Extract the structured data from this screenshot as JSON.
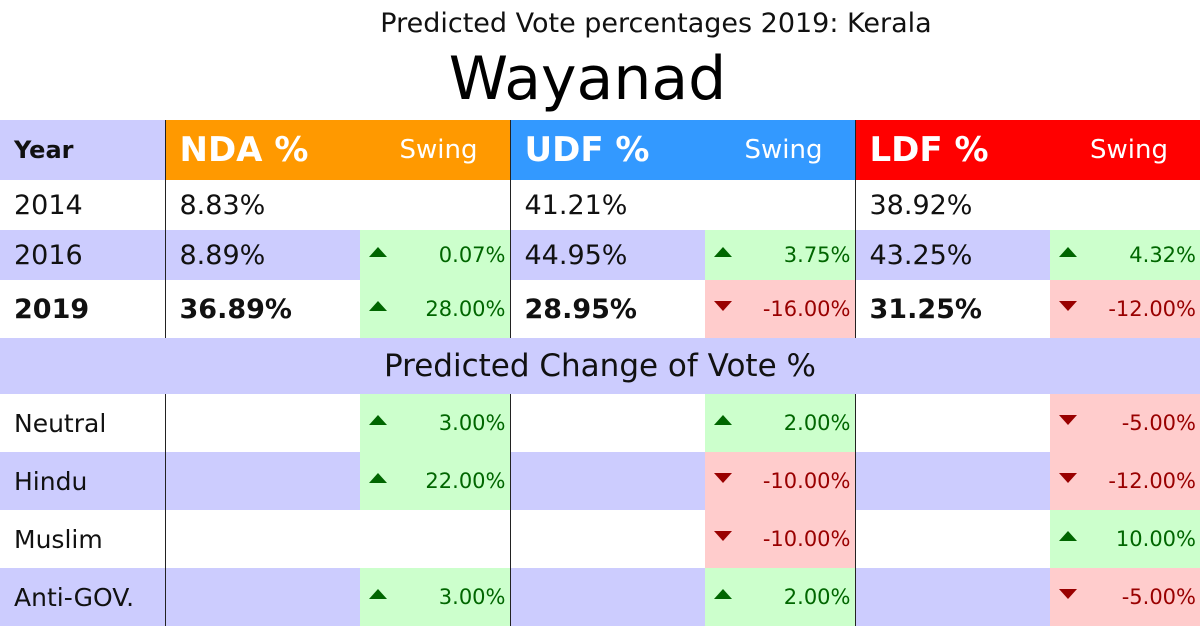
{
  "subtitle": "Predicted Vote percentages 2019: Kerala",
  "title": "Wayanad",
  "header": {
    "year": "Year",
    "nda": "NDA %",
    "udf": "UDF %",
    "ldf": "LDF %",
    "swing": "Swing"
  },
  "colors": {
    "nda": "#ff9900",
    "udf": "#3399ff",
    "ldf": "#ff0000",
    "band": "#ccccfe",
    "up": "#ccffcc",
    "down": "#ffcccc"
  },
  "years": [
    {
      "year": "2014",
      "nda": "8.83%",
      "nda_swing": "",
      "udf": "41.21%",
      "udf_swing": "",
      "ldf": "38.92%",
      "ldf_swing": ""
    },
    {
      "year": "2016",
      "nda": "8.89%",
      "nda_swing": "0.07%",
      "udf": "44.95%",
      "udf_swing": "3.75%",
      "ldf": "43.25%",
      "ldf_swing": "4.32%"
    },
    {
      "year": "2019",
      "nda": "36.89%",
      "nda_swing": "28.00%",
      "udf": "28.95%",
      "udf_swing": "-16.00%",
      "ldf": "31.25%",
      "ldf_swing": "-12.00%"
    }
  ],
  "section_title": "Predicted Change of Vote %",
  "changes": [
    {
      "label": "Neutral",
      "nda": "3.00%",
      "udf": "2.00%",
      "ldf": "-5.00%"
    },
    {
      "label": "Hindu",
      "nda": "22.00%",
      "udf": "-10.00%",
      "ldf": "-12.00%"
    },
    {
      "label": "Muslim",
      "nda": "",
      "udf": "-10.00%",
      "ldf": "10.00%"
    },
    {
      "label": "Anti-GOV.",
      "nda": "3.00%",
      "udf": "2.00%",
      "ldf": "-5.00%"
    }
  ]
}
